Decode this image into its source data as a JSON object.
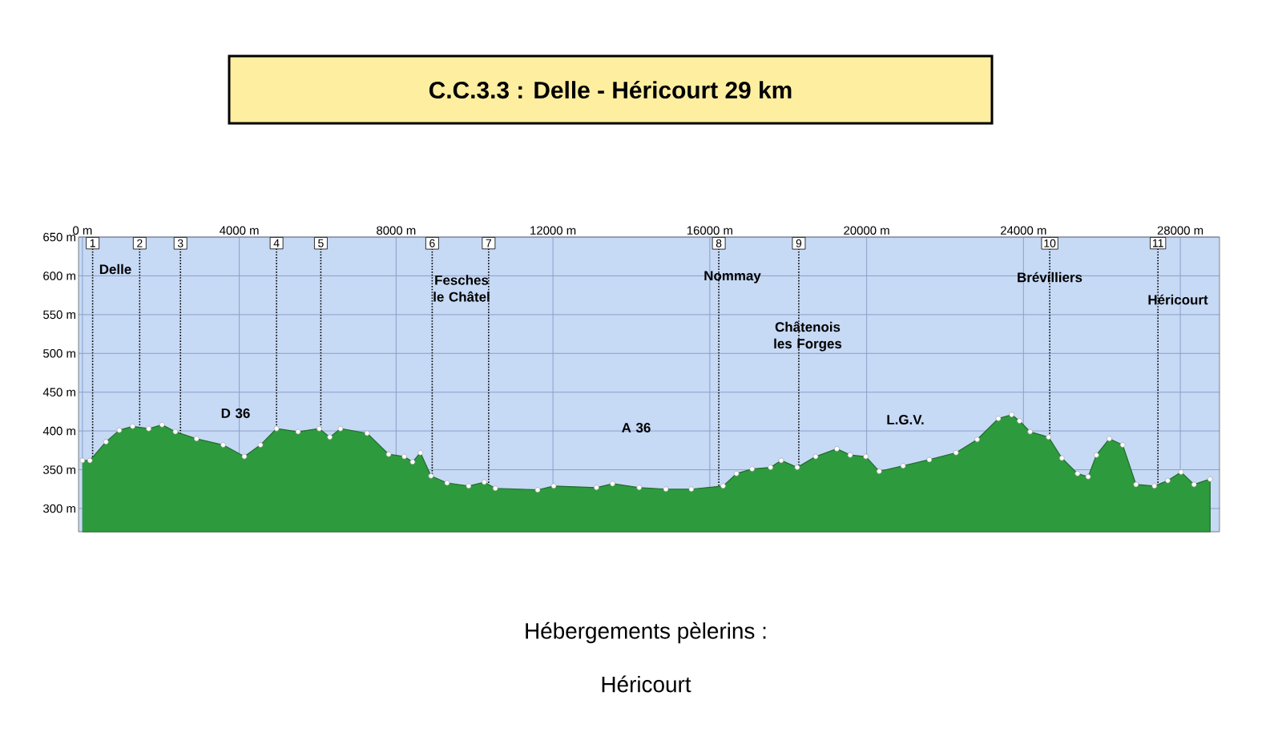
{
  "chart_data": {
    "type": "area",
    "title": "C.C.3.3 :  Delle - Héricourt  29 km",
    "xlim": [
      -100,
      29000
    ],
    "ylim": [
      270,
      650
    ],
    "xticks": [
      {
        "value": 0,
        "label": "0 m"
      },
      {
        "value": 4000,
        "label": "4000 m"
      },
      {
        "value": 8000,
        "label": "8000 m"
      },
      {
        "value": 12000,
        "label": "12000 m"
      },
      {
        "value": 16000,
        "label": "16000 m"
      },
      {
        "value": 20000,
        "label": "20000 m"
      },
      {
        "value": 24000,
        "label": "24000 m"
      },
      {
        "value": 28000,
        "label": "28000 m"
      }
    ],
    "yticks": [
      {
        "value": 300,
        "label": "300 m"
      },
      {
        "value": 350,
        "label": "350 m"
      },
      {
        "value": 400,
        "label": "400 m"
      },
      {
        "value": 450,
        "label": "450 m"
      },
      {
        "value": 500,
        "label": "500 m"
      },
      {
        "value": 550,
        "label": "550 m"
      },
      {
        "value": 600,
        "label": "600 m"
      },
      {
        "value": 650,
        "label": "650 m"
      }
    ],
    "grid": true,
    "marker": "circle",
    "series": [
      {
        "color": "#2e9a3e",
        "x": [
          0,
          190,
          600,
          940,
          1280,
          1690,
          2030,
          2370,
          2910,
          3590,
          4130,
          4540,
          4950,
          5500,
          6040,
          6310,
          6580,
          7260,
          7810,
          8210,
          8420,
          8620,
          8890,
          9300,
          9850,
          10250,
          10530,
          11610,
          12020,
          13110,
          13520,
          14200,
          14880,
          15530,
          16340,
          16680,
          17080,
          17550,
          17820,
          18230,
          18700,
          19240,
          19580,
          19980,
          20320,
          20930,
          21600,
          22280,
          22820,
          23360,
          23700,
          23900,
          24170,
          24640,
          24980,
          25380,
          25650,
          25860,
          26190,
          26530,
          26870,
          27340,
          27680,
          28020,
          28350,
          28760
        ],
        "values": [
          362,
          362,
          386,
          401,
          406,
          403,
          408,
          399,
          390,
          382,
          367,
          382,
          403,
          399,
          403,
          392,
          403,
          397,
          370,
          367,
          360,
          372,
          342,
          333,
          329,
          334,
          326,
          324,
          329,
          327,
          332,
          327,
          325,
          325,
          329,
          345,
          351,
          353,
          362,
          353,
          367,
          377,
          369,
          367,
          348,
          355,
          363,
          372,
          389,
          416,
          421,
          413,
          399,
          392,
          365,
          345,
          341,
          369,
          390,
          382,
          331,
          329,
          336,
          347,
          331,
          338
        ]
      }
    ],
    "ref_lines": [
      {
        "axis": "x",
        "value": 260,
        "color": "#000000",
        "line_style": "dotted"
      },
      {
        "axis": "x",
        "value": 1460,
        "color": "#000000",
        "line_style": "dotted"
      },
      {
        "axis": "x",
        "value": 2500,
        "color": "#000000",
        "line_style": "dotted"
      },
      {
        "axis": "x",
        "value": 4950,
        "color": "#000000",
        "line_style": "dotted"
      },
      {
        "axis": "x",
        "value": 6080,
        "color": "#000000",
        "line_style": "dotted"
      },
      {
        "axis": "x",
        "value": 8920,
        "color": "#000000",
        "line_style": "dotted"
      },
      {
        "axis": "x",
        "value": 10360,
        "color": "#000000",
        "line_style": "dotted"
      },
      {
        "axis": "x",
        "value": 16230,
        "color": "#000000",
        "line_style": "dotted"
      },
      {
        "axis": "x",
        "value": 18270,
        "color": "#000000",
        "line_style": "dotted"
      },
      {
        "axis": "x",
        "value": 24670,
        "color": "#000000",
        "line_style": "dotted"
      },
      {
        "axis": "x",
        "value": 27430,
        "color": "#000000",
        "line_style": "dotted"
      }
    ],
    "annotations": [
      "Delle",
      "Fesches le Châtel",
      "Nommay",
      "Châtenois les Forges",
      "Brévilliers",
      "Héricourt",
      "D 36",
      "A 36",
      "L.G.V.",
      "Hébergements pèlerins :",
      "Héricourt",
      "1",
      "2",
      "3",
      "4",
      "5",
      "6",
      "7",
      "8",
      "9",
      "10",
      "11"
    ]
  }
}
